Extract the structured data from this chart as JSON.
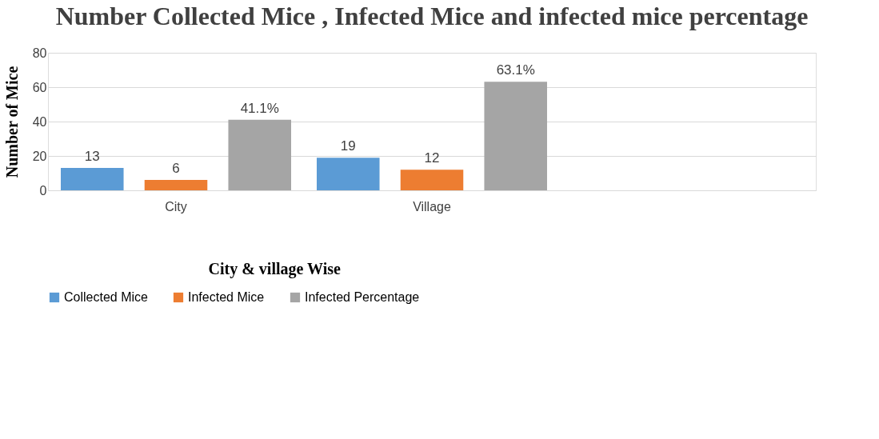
{
  "chart_data": {
    "type": "bar",
    "title": "Number Collected Mice , Infected Mice and infected mice percentage",
    "xlabel": "City & village Wise",
    "ylabel": "Number of Mice",
    "categories": [
      "City",
      "Village",
      null
    ],
    "series": [
      {
        "name": "Collected Mice",
        "color": "#5b9bd5",
        "values": [
          13,
          19,
          null
        ],
        "value_labels": [
          "13",
          "19",
          null
        ]
      },
      {
        "name": "Infected Mice",
        "color": "#ed7d31",
        "values": [
          6,
          12,
          null
        ],
        "value_labels": [
          "6",
          "12",
          null
        ]
      },
      {
        "name": "Infected Percentage",
        "color": "#a5a5a5",
        "values": [
          41.1,
          63.1,
          null
        ],
        "value_labels": [
          "41.1%",
          "63.1%",
          null
        ]
      }
    ],
    "ylim": [
      0,
      80
    ],
    "yticks": [
      0,
      20,
      40,
      60,
      80
    ],
    "grid": "y",
    "legend": "bottom"
  }
}
